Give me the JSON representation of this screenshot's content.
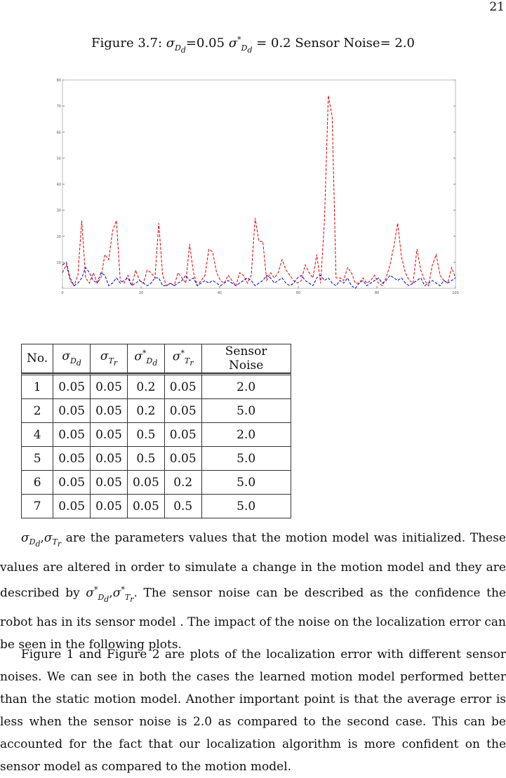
{
  "page_number": "21",
  "caption": {
    "prefix": "Figure 3.7: ",
    "sym1": "σ",
    "sub1": "D",
    "sub1b": "d",
    "val1": "=0.05 ",
    "sym2": "σ",
    "sup2": "*",
    "sub2": "D",
    "sub2b": "d",
    "val2": " = 0.2 Sensor Noise= 2.0"
  },
  "chart_data": {
    "type": "line",
    "xlim": [
      0,
      100
    ],
    "ylim": [
      0,
      80
    ],
    "x_ticks": [
      "0",
      "20",
      "40",
      "60",
      "80",
      "100"
    ],
    "y_ticks": [
      "10",
      "20",
      "30",
      "40",
      "50",
      "60",
      "70",
      "80"
    ],
    "series": [
      {
        "style": "dashed",
        "color": "#e00000",
        "values": [
          6,
          9,
          3,
          1,
          5,
          26,
          4,
          2,
          6,
          2,
          4,
          13,
          11,
          22,
          26,
          3,
          2,
          5,
          1,
          7,
          3,
          2,
          7,
          6,
          4,
          25,
          5,
          1,
          2,
          1,
          6,
          4,
          2,
          17,
          6,
          1,
          3,
          5,
          15,
          14,
          6,
          3,
          2,
          5,
          3,
          1,
          6,
          5,
          2,
          5,
          27,
          18,
          18,
          3,
          6,
          4,
          6,
          11,
          7,
          5,
          3,
          2,
          3,
          9,
          6,
          4,
          13,
          2,
          26,
          74,
          66,
          4,
          4,
          3,
          8,
          6,
          2,
          2,
          4,
          2,
          3,
          5,
          2,
          1,
          4,
          9,
          16,
          25,
          12,
          6,
          3,
          2,
          15,
          7,
          3,
          1,
          9,
          13,
          5,
          3,
          2,
          8,
          4
        ]
      },
      {
        "style": "dashed",
        "color": "#0000d0",
        "values": [
          9,
          10,
          4,
          1,
          2,
          4,
          8,
          6,
          3,
          2,
          6,
          5,
          1,
          2,
          4,
          2,
          3,
          4,
          1,
          2,
          3,
          2,
          1,
          2,
          4,
          4,
          1,
          1,
          2,
          1,
          2,
          3,
          5,
          3,
          4,
          1,
          2,
          3,
          2,
          3,
          2,
          1,
          2,
          3,
          2,
          1,
          2,
          3,
          4,
          3,
          1,
          2,
          3,
          5,
          4,
          2,
          3,
          4,
          2,
          1,
          2,
          4,
          5,
          3,
          2,
          1,
          4,
          5,
          3,
          4,
          2,
          1,
          3,
          2,
          4,
          1,
          0,
          2,
          3,
          1,
          2,
          3,
          4,
          2,
          3,
          5,
          4,
          3,
          4,
          2,
          1,
          2,
          3,
          4,
          1,
          2,
          3,
          2,
          1,
          3,
          2,
          3,
          4
        ]
      }
    ]
  },
  "table": {
    "headers": [
      "No.",
      "σ",
      "σ",
      "σ",
      "σ",
      "Sensor Noise"
    ],
    "header_subs": [
      "",
      "D",
      "T",
      "D",
      "T",
      ""
    ],
    "header_subsubs": [
      "",
      "d",
      "r",
      "d",
      "r",
      ""
    ],
    "header_sups": [
      "",
      "",
      "",
      "*",
      "*",
      ""
    ],
    "rows": [
      [
        "1",
        "0.05",
        "0.05",
        "0.2",
        "0.05",
        "2.0"
      ],
      [
        "2",
        "0.05",
        "0.05",
        "0.2",
        "0.05",
        "5.0"
      ],
      [
        "4",
        "0.05",
        "0.05",
        "0.5",
        "0.05",
        "2.0"
      ],
      [
        "5",
        "0.05",
        "0.05",
        "0.5",
        "0.05",
        "5.0"
      ],
      [
        "6",
        "0.05",
        "0.05",
        "0.05",
        "0.2",
        "5.0"
      ],
      [
        "7",
        "0.05",
        "0.05",
        "0.05",
        "0.5",
        "5.0"
      ]
    ]
  },
  "para1": {
    "sym_a": "σ",
    "sub_a": "D",
    "subsub_a": "d",
    "comma": ",",
    "sym_b": "σ",
    "sub_b": "T",
    "subsub_b": "r",
    "text1": " are the parameters values that the motion model was initialized. These values are altered in order to simulate a change in the motion model and they are described by ",
    "sym_c": "σ",
    "sup_c": "*",
    "sub_c": "D",
    "subsub_c": "d",
    "comma2": ",",
    "sym_d": "σ",
    "sup_d": "*",
    "sub_d": "T",
    "subsub_d": "r",
    "text2": ". The sensor noise can be described as the confidence the robot has in its sensor model . The impact of the noise on the localization error can be seen in the following plots."
  },
  "para2": {
    "text": "Figure 1 and Figure 2 are plots of the localization error with different sensor noises. We can see in both the cases the learned motion model performed better than the static motion model. Another important point is that the average error is less when the sensor noise is 2.0 as compared to the second case. This can be accounted for the fact that our localization algorithm is more confident on the sensor model as compared to the motion model."
  }
}
